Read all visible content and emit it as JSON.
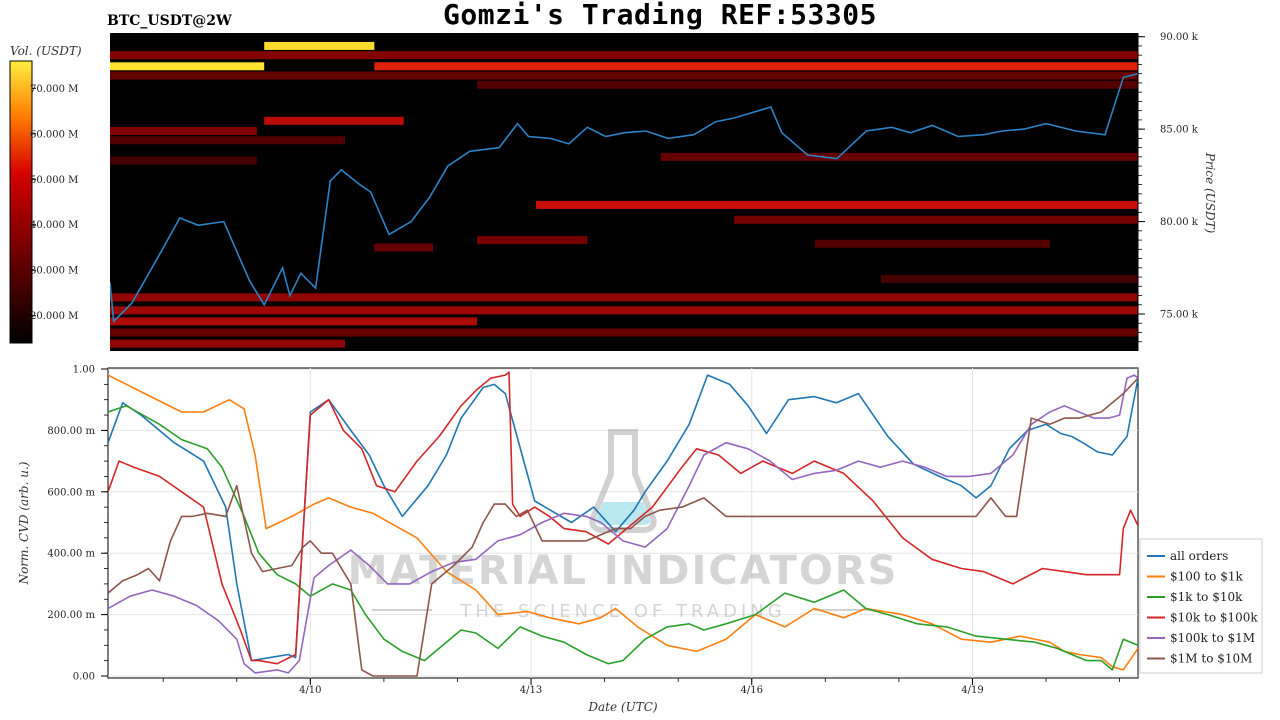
{
  "header": {
    "title": "Gomzi's Trading REF:53305",
    "symbol": "BTC_USDT@2W"
  },
  "watermark": {
    "brand": "MATERIAL INDICATORS",
    "tagline": "THE SCIENCE OF TRADING"
  },
  "colors": {
    "heatmap_bg": "#000000",
    "price_line": "#2b83c6",
    "liquidity_low": "#5a0000",
    "liquidity_high": "#ffe633",
    "grid": "#e6e6e6"
  },
  "chart_data": [
    {
      "type": "heatmap",
      "panel": "top",
      "colorbar": {
        "label": "Vol. (USDT)",
        "ticks": [
          "70.000 M",
          "60.000 M",
          "50.000 M",
          "40.000 M",
          "30.000 M",
          "20.000 M"
        ],
        "tick_values": [
          70,
          60,
          50,
          40,
          30,
          20
        ],
        "range": [
          14,
          76
        ]
      },
      "y_axis": {
        "label": "Price (USDT)",
        "ticks": [
          "90.00 k",
          "85.00 k",
          "80.00 k",
          "75.00 k"
        ],
        "tick_values": [
          90000,
          85000,
          80000,
          75000
        ],
        "range": [
          73000,
          90200
        ]
      },
      "x_range": [
        0,
        14
      ],
      "bands": [
        {
          "price": 88400,
          "x": [
            0,
            2.1
          ],
          "vol": 75
        },
        {
          "price": 89500,
          "x": [
            2.1,
            3.6
          ],
          "vol": 74
        },
        {
          "price": 88400,
          "x": [
            3.6,
            14
          ],
          "vol": 46
        },
        {
          "price": 89000,
          "x": [
            0,
            14
          ],
          "vol": 28
        },
        {
          "price": 87900,
          "x": [
            0,
            14
          ],
          "vol": 24
        },
        {
          "price": 87400,
          "x": [
            5.0,
            14
          ],
          "vol": 22
        },
        {
          "price": 85450,
          "x": [
            2.1,
            4.0
          ],
          "vol": 36
        },
        {
          "price": 84900,
          "x": [
            0,
            2.0
          ],
          "vol": 28
        },
        {
          "price": 84400,
          "x": [
            0,
            3.2
          ],
          "vol": 22
        },
        {
          "price": 83500,
          "x": [
            7.5,
            14
          ],
          "vol": 24
        },
        {
          "price": 83300,
          "x": [
            0,
            2.0
          ],
          "vol": 20
        },
        {
          "price": 80900,
          "x": [
            5.8,
            14
          ],
          "vol": 38
        },
        {
          "price": 80100,
          "x": [
            8.5,
            14
          ],
          "vol": 26
        },
        {
          "price": 79000,
          "x": [
            5.0,
            6.5
          ],
          "vol": 26
        },
        {
          "price": 78800,
          "x": [
            9.6,
            12.8
          ],
          "vol": 22
        },
        {
          "price": 78600,
          "x": [
            3.6,
            4.4
          ],
          "vol": 24
        },
        {
          "price": 76900,
          "x": [
            10.5,
            14
          ],
          "vol": 20
        },
        {
          "price": 75900,
          "x": [
            0,
            14
          ],
          "vol": 30
        },
        {
          "price": 75200,
          "x": [
            0,
            14
          ],
          "vol": 32
        },
        {
          "price": 74600,
          "x": [
            0,
            5.0
          ],
          "vol": 34
        },
        {
          "price": 74000,
          "x": [
            0,
            14
          ],
          "vol": 24
        },
        {
          "price": 73400,
          "x": [
            0,
            3.2
          ],
          "vol": 30
        }
      ],
      "price_series": {
        "x": [
          0,
          0.05,
          0.3,
          0.7,
          0.95,
          1.2,
          1.55,
          1.9,
          2.1,
          2.35,
          2.45,
          2.6,
          2.8,
          3.0,
          3.15,
          3.4,
          3.55,
          3.8,
          4.1,
          4.35,
          4.6,
          4.9,
          5.3,
          5.55,
          5.7,
          6.0,
          6.25,
          6.5,
          6.75,
          7.0,
          7.3,
          7.6,
          7.95,
          8.25,
          8.5,
          8.75,
          9.0,
          9.15,
          9.5,
          9.9,
          10.3,
          10.65,
          10.9,
          11.2,
          11.55,
          11.9,
          12.15,
          12.45,
          12.75,
          13.15,
          13.55,
          13.8,
          14.0
        ],
        "y": [
          76700,
          74600,
          75600,
          78400,
          80200,
          79800,
          80000,
          76800,
          75500,
          77500,
          76000,
          77200,
          76400,
          82200,
          82800,
          82000,
          81600,
          79300,
          80000,
          81300,
          83000,
          83800,
          84000,
          85300,
          84600,
          84500,
          84200,
          85100,
          84600,
          84800,
          84900,
          84500,
          84700,
          85400,
          85600,
          85900,
          86200,
          84800,
          83600,
          83400,
          84900,
          85100,
          84800,
          85200,
          84600,
          84700,
          84900,
          85000,
          85300,
          84900,
          84700,
          87800,
          88000
        ]
      }
    },
    {
      "type": "line",
      "panel": "bottom",
      "xlabel": "Date (UTC)",
      "ylabel": "Norm. CVD (arb. u.)",
      "x_range": [
        0,
        14
      ],
      "ylim": [
        0,
        1
      ],
      "y_ticks": [
        "0.00",
        "200.00 m",
        "400.00 m",
        "600.00 m",
        "800.00 m",
        "1.00"
      ],
      "y_tick_values": [
        0,
        0.2,
        0.4,
        0.6,
        0.8,
        1.0
      ],
      "x_ticks": [
        "4/10",
        "4/13",
        "4/16",
        "4/19"
      ],
      "x_tick_values": [
        2.75,
        5.75,
        8.75,
        11.75
      ],
      "legend_position": "right",
      "series": [
        {
          "name": "all orders",
          "color": "#1f77b4",
          "x": [
            0,
            0.2,
            0.45,
            0.9,
            1.3,
            1.6,
            1.75,
            1.95,
            2.2,
            2.45,
            2.55,
            2.75,
            3.0,
            3.3,
            3.55,
            3.75,
            4.0,
            4.35,
            4.6,
            4.8,
            4.95,
            5.1,
            5.25,
            5.4,
            5.8,
            6.3,
            6.6,
            6.9,
            7.15,
            7.3,
            7.6,
            7.9,
            8.15,
            8.45,
            8.7,
            8.95,
            9.25,
            9.6,
            9.9,
            10.2,
            10.6,
            10.95,
            11.3,
            11.6,
            11.8,
            12.0,
            12.25,
            12.5,
            12.75,
            12.95,
            13.1,
            13.25,
            13.45,
            13.65,
            13.85,
            14.0
          ],
          "y": [
            0.76,
            0.89,
            0.85,
            0.76,
            0.7,
            0.55,
            0.3,
            0.05,
            0.06,
            0.07,
            0.06,
            0.86,
            0.9,
            0.8,
            0.72,
            0.62,
            0.52,
            0.62,
            0.72,
            0.84,
            0.89,
            0.94,
            0.95,
            0.92,
            0.57,
            0.5,
            0.55,
            0.47,
            0.54,
            0.6,
            0.7,
            0.82,
            0.98,
            0.95,
            0.88,
            0.79,
            0.9,
            0.91,
            0.89,
            0.92,
            0.78,
            0.69,
            0.65,
            0.62,
            0.58,
            0.62,
            0.74,
            0.8,
            0.82,
            0.79,
            0.78,
            0.76,
            0.73,
            0.72,
            0.78,
            0.97
          ]
        },
        {
          "name": "$100 to $1k",
          "color": "#ff7f0e",
          "x": [
            0,
            0.5,
            1.0,
            1.3,
            1.65,
            1.85,
            2.0,
            2.15,
            2.5,
            2.8,
            3.0,
            3.3,
            3.6,
            3.9,
            4.2,
            4.6,
            5.0,
            5.3,
            5.7,
            6.0,
            6.4,
            6.7,
            6.9,
            7.2,
            7.6,
            8.0,
            8.4,
            8.8,
            9.2,
            9.6,
            10.0,
            10.3,
            10.8,
            11.2,
            11.6,
            12.0,
            12.4,
            12.8,
            13.0,
            13.2,
            13.5,
            13.65,
            13.8,
            14.0
          ],
          "y": [
            0.98,
            0.92,
            0.86,
            0.86,
            0.9,
            0.87,
            0.72,
            0.48,
            0.52,
            0.56,
            0.58,
            0.55,
            0.53,
            0.49,
            0.45,
            0.34,
            0.28,
            0.2,
            0.21,
            0.19,
            0.17,
            0.19,
            0.22,
            0.16,
            0.1,
            0.08,
            0.12,
            0.2,
            0.16,
            0.22,
            0.19,
            0.22,
            0.2,
            0.17,
            0.12,
            0.11,
            0.13,
            0.11,
            0.08,
            0.07,
            0.06,
            0.03,
            0.02,
            0.09
          ]
        },
        {
          "name": "$1k to $10k",
          "color": "#2ca02c",
          "x": [
            0,
            0.25,
            0.7,
            1.0,
            1.35,
            1.55,
            1.85,
            2.05,
            2.3,
            2.55,
            2.75,
            3.05,
            3.3,
            3.5,
            3.75,
            4.0,
            4.3,
            4.6,
            4.8,
            5.0,
            5.3,
            5.6,
            5.9,
            6.2,
            6.5,
            6.8,
            7.0,
            7.3,
            7.6,
            7.9,
            8.1,
            8.4,
            8.8,
            9.2,
            9.6,
            10.0,
            10.3,
            10.6,
            11.0,
            11.4,
            11.8,
            12.2,
            12.6,
            12.9,
            13.1,
            13.3,
            13.5,
            13.65,
            13.8,
            14.0
          ],
          "y": [
            0.86,
            0.88,
            0.82,
            0.77,
            0.74,
            0.68,
            0.52,
            0.4,
            0.33,
            0.3,
            0.26,
            0.3,
            0.28,
            0.2,
            0.12,
            0.08,
            0.05,
            0.11,
            0.15,
            0.14,
            0.09,
            0.16,
            0.13,
            0.11,
            0.07,
            0.04,
            0.05,
            0.12,
            0.16,
            0.17,
            0.15,
            0.17,
            0.2,
            0.27,
            0.24,
            0.28,
            0.22,
            0.2,
            0.17,
            0.16,
            0.13,
            0.12,
            0.11,
            0.09,
            0.07,
            0.05,
            0.05,
            0.02,
            0.12,
            0.1
          ]
        },
        {
          "name": "$10k to $100k",
          "color": "#d62728",
          "x": [
            0,
            0.15,
            0.35,
            0.7,
            1.0,
            1.3,
            1.55,
            1.8,
            1.95,
            2.05,
            2.3,
            2.55,
            2.75,
            3.0,
            3.2,
            3.45,
            3.65,
            3.9,
            4.2,
            4.5,
            4.8,
            5.0,
            5.2,
            5.4,
            5.45,
            5.5,
            5.6,
            5.8,
            6.0,
            6.2,
            6.5,
            6.8,
            7.0,
            7.4,
            7.8,
            8.0,
            8.3,
            8.6,
            8.9,
            9.3,
            9.6,
            10.0,
            10.4,
            10.8,
            11.2,
            11.6,
            11.9,
            12.3,
            12.7,
            13.0,
            13.3,
            13.6,
            13.75,
            13.8,
            13.9,
            14.0
          ],
          "y": [
            0.6,
            0.7,
            0.68,
            0.65,
            0.6,
            0.55,
            0.3,
            0.15,
            0.05,
            0.05,
            0.04,
            0.07,
            0.85,
            0.9,
            0.8,
            0.74,
            0.62,
            0.6,
            0.7,
            0.78,
            0.88,
            0.93,
            0.97,
            0.98,
            0.99,
            0.56,
            0.52,
            0.55,
            0.52,
            0.48,
            0.47,
            0.43,
            0.47,
            0.55,
            0.68,
            0.74,
            0.72,
            0.66,
            0.7,
            0.66,
            0.7,
            0.66,
            0.57,
            0.45,
            0.38,
            0.35,
            0.34,
            0.3,
            0.35,
            0.34,
            0.33,
            0.33,
            0.33,
            0.48,
            0.54,
            0.49
          ]
        },
        {
          "name": "$100k to $1M",
          "color": "#9467bd",
          "x": [
            0,
            0.3,
            0.6,
            0.9,
            1.2,
            1.5,
            1.75,
            1.85,
            2.0,
            2.3,
            2.45,
            2.6,
            2.8,
            3.0,
            3.3,
            3.55,
            3.8,
            4.1,
            4.4,
            4.7,
            5.0,
            5.3,
            5.6,
            5.9,
            6.2,
            6.5,
            6.7,
            7.0,
            7.3,
            7.6,
            7.9,
            8.1,
            8.4,
            8.7,
            9.0,
            9.3,
            9.6,
            9.9,
            10.2,
            10.5,
            10.8,
            11.1,
            11.4,
            11.7,
            12.0,
            12.3,
            12.55,
            12.8,
            13.0,
            13.2,
            13.4,
            13.6,
            13.75,
            13.85,
            13.95,
            14.0
          ],
          "y": [
            0.22,
            0.26,
            0.28,
            0.26,
            0.23,
            0.18,
            0.12,
            0.04,
            0.01,
            0.02,
            0.01,
            0.05,
            0.32,
            0.36,
            0.41,
            0.36,
            0.3,
            0.3,
            0.34,
            0.37,
            0.38,
            0.44,
            0.46,
            0.5,
            0.53,
            0.52,
            0.5,
            0.44,
            0.42,
            0.48,
            0.62,
            0.72,
            0.76,
            0.74,
            0.7,
            0.64,
            0.66,
            0.67,
            0.7,
            0.68,
            0.7,
            0.68,
            0.65,
            0.65,
            0.66,
            0.72,
            0.82,
            0.86,
            0.88,
            0.86,
            0.84,
            0.84,
            0.85,
            0.97,
            0.98,
            0.97
          ]
        },
        {
          "name": "$1M to $10M",
          "color": "#8c564b",
          "x": [
            0,
            0.2,
            0.4,
            0.55,
            0.7,
            0.85,
            1.0,
            1.15,
            1.35,
            1.6,
            1.75,
            1.95,
            2.1,
            2.3,
            2.5,
            2.65,
            2.75,
            2.9,
            3.05,
            3.3,
            3.45,
            3.6,
            3.9,
            4.2,
            4.4,
            4.7,
            4.95,
            5.1,
            5.25,
            5.4,
            5.55,
            5.7,
            5.9,
            6.1,
            6.3,
            6.5,
            6.7,
            6.9,
            7.1,
            7.3,
            7.5,
            7.8,
            8.1,
            8.4,
            8.6,
            8.8,
            9.0,
            9.3,
            9.6,
            10.0,
            10.5,
            11.0,
            11.5,
            11.8,
            12.0,
            12.2,
            12.35,
            12.55,
            12.8,
            13.0,
            13.2,
            13.5,
            13.7,
            13.8,
            14.0
          ],
          "y": [
            0.27,
            0.31,
            0.33,
            0.35,
            0.31,
            0.44,
            0.52,
            0.52,
            0.53,
            0.52,
            0.62,
            0.4,
            0.34,
            0.35,
            0.36,
            0.42,
            0.44,
            0.4,
            0.4,
            0.3,
            0.02,
            0.0,
            0.0,
            0.0,
            0.3,
            0.36,
            0.42,
            0.5,
            0.56,
            0.56,
            0.52,
            0.54,
            0.44,
            0.44,
            0.44,
            0.44,
            0.46,
            0.48,
            0.48,
            0.52,
            0.54,
            0.55,
            0.58,
            0.52,
            0.52,
            0.52,
            0.52,
            0.52,
            0.52,
            0.52,
            0.52,
            0.52,
            0.52,
            0.52,
            0.58,
            0.52,
            0.52,
            0.84,
            0.82,
            0.84,
            0.84,
            0.86,
            0.9,
            0.92,
            0.97
          ]
        }
      ]
    }
  ]
}
